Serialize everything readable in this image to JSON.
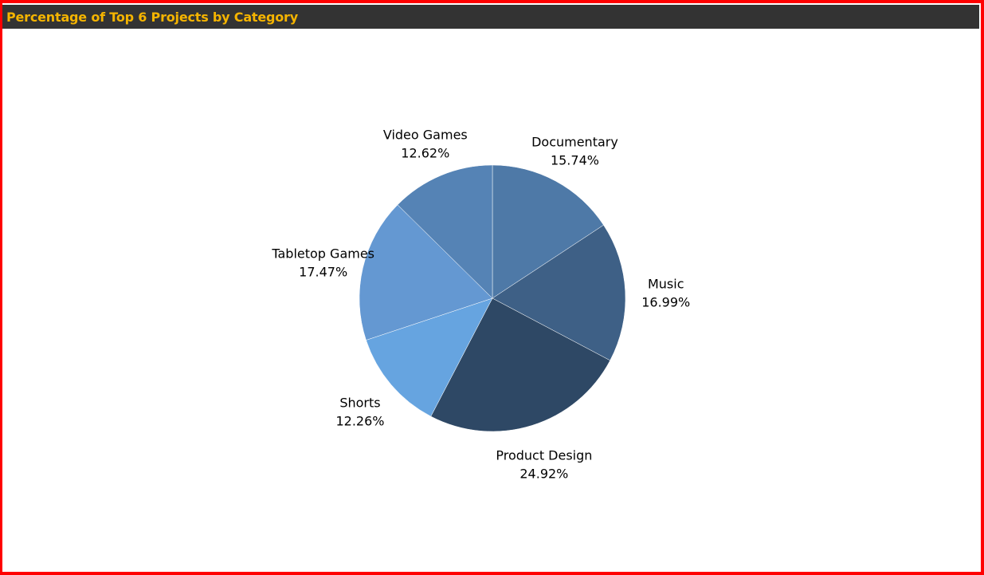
{
  "header": {
    "title": "Percentage of Top 6 Projects by Category"
  },
  "colors": {
    "border": "#ff0000",
    "title_bar": "#333333",
    "title_text": "#f5b400",
    "slice_border": "#ffffff"
  },
  "chart_data": {
    "type": "pie",
    "title": "Percentage of Top 6 Projects by Category",
    "start_angle_deg": 0,
    "direction": "clockwise",
    "slices": [
      {
        "label": "Documentary",
        "value": 15.74,
        "value_label": "15.74%",
        "color": "#4e79a7"
      },
      {
        "label": "Music",
        "value": 16.99,
        "value_label": "16.99%",
        "color": "#3e6086"
      },
      {
        "label": "Product Design",
        "value": 24.92,
        "value_label": "24.92%",
        "color": "#2e4865"
      },
      {
        "label": "Shorts",
        "value": 12.26,
        "value_label": "12.26%",
        "color": "#66a4e0"
      },
      {
        "label": "Tabletop Games",
        "value": 17.47,
        "value_label": "17.47%",
        "color": "#6498d2"
      },
      {
        "label": "Video Games",
        "value": 12.62,
        "value_label": "12.62%",
        "color": "#5583b5"
      }
    ]
  }
}
